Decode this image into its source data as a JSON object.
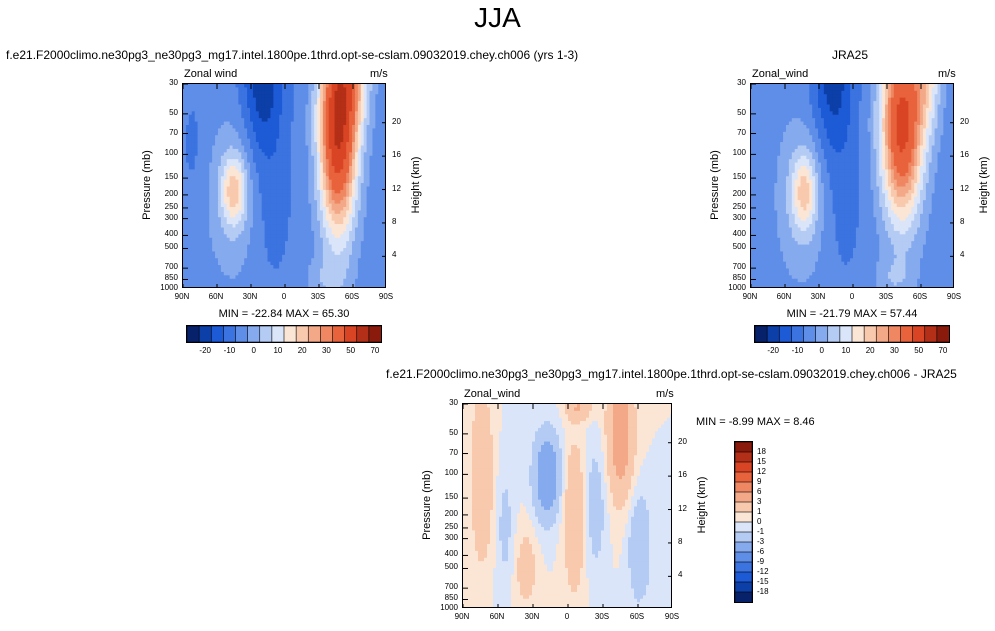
{
  "figure_title": "JJA",
  "colors": {
    "neg": [
      "#08216b",
      "#0d3fa8",
      "#1d5ad6",
      "#3b73e0",
      "#5f8ee8",
      "#86aaee",
      "#b4cbf4",
      "#dae5f9"
    ],
    "pos": [
      "#fbe6d6",
      "#f8c9ad",
      "#f3a988",
      "#ee8762",
      "#e8633c",
      "#d94524",
      "#b42f17",
      "#8a1a0c"
    ]
  },
  "chart_data": [
    {
      "type": "heatmap",
      "title": "f.e21.F2000climo.ne30pg3_ne30pg3_mg17.intel.1800pe.1thrd.opt-se-cslam.09032019.chey.ch006 (yrs 1-3)",
      "variable": "Zonal wind",
      "units": "m/s",
      "ylabel": "Pressure (mb)",
      "ylabel_right": "Height (km)",
      "x_ticks": [
        "90N",
        "60N",
        "30N",
        "0",
        "30S",
        "60S",
        "90S"
      ],
      "y_ticks": [
        "30",
        "50",
        "70",
        "100",
        "150",
        "200",
        "250",
        "300",
        "400",
        "500",
        "700",
        "850",
        "1000"
      ],
      "y_ticks_right": [
        "20",
        "16",
        "12",
        "8",
        "4"
      ],
      "stats": "MIN = -22.84  MAX = 65.30",
      "colorbar_labels": [
        "-20",
        "-10",
        "0",
        "10",
        "20",
        "30",
        "50",
        "70"
      ],
      "min": -22.84,
      "max": 65.3
    },
    {
      "type": "heatmap",
      "title": "JRA25",
      "variable": "Zonal_wind",
      "units": "m/s",
      "ylabel": "Pressure (mb)",
      "ylabel_right": "Height (km)",
      "x_ticks": [
        "90N",
        "60N",
        "30N",
        "0",
        "30S",
        "60S",
        "90S"
      ],
      "y_ticks": [
        "30",
        "50",
        "70",
        "100",
        "150",
        "200",
        "250",
        "300",
        "400",
        "500",
        "700",
        "850",
        "1000"
      ],
      "y_ticks_right": [
        "20",
        "16",
        "12",
        "8",
        "4"
      ],
      "stats": "MIN = -21.79  MAX = 57.44",
      "colorbar_labels": [
        "-20",
        "-10",
        "0",
        "10",
        "20",
        "30",
        "50",
        "70"
      ],
      "min": -21.79,
      "max": 57.44
    },
    {
      "type": "heatmap",
      "title": "f.e21.F2000climo.ne30pg3_ne30pg3_mg17.intel.1800pe.1thrd.opt-se-cslam.09032019.chey.ch006 - JRA25",
      "variable": "Zonal_wind",
      "units": "m/s",
      "ylabel": "Pressure (mb)",
      "ylabel_right": "Height (km)",
      "x_ticks": [
        "90N",
        "60N",
        "30N",
        "0",
        "30S",
        "60S",
        "90S"
      ],
      "y_ticks": [
        "30",
        "50",
        "70",
        "100",
        "150",
        "200",
        "250",
        "300",
        "400",
        "500",
        "700",
        "850",
        "1000"
      ],
      "y_ticks_right": [
        "20",
        "16",
        "12",
        "8",
        "4"
      ],
      "stats": "MIN =  -8.99  MAX =  8.46",
      "colorbar_labels": [
        "18",
        "15",
        "12",
        "9",
        "6",
        "3",
        "1",
        "0",
        "-1",
        "-3",
        "-6",
        "-9",
        "-12",
        "-15",
        "-18"
      ],
      "min": -8.99,
      "max": 8.46
    }
  ]
}
